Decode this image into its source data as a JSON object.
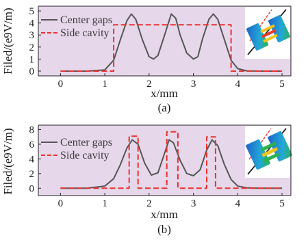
{
  "chart_data": [
    {
      "type": "line",
      "panel_label": "(a)",
      "xlabel": "x/mm",
      "ylabel": "Filed/(e9V/m)",
      "xlim": [
        -0.5,
        5.2
      ],
      "ylim": [
        -0.4,
        5.4
      ],
      "xticks": [
        0,
        1,
        2,
        3,
        4,
        5
      ],
      "yticks": [
        0,
        1,
        2,
        3,
        4,
        5
      ],
      "legend_position": "top-left",
      "background_color": "#e6d7ea",
      "series": [
        {
          "name": "Center gaps",
          "color": "#555555",
          "style": "solid",
          "x": [
            0,
            0.6,
            1.0,
            1.2,
            1.35,
            1.5,
            1.6,
            1.7,
            1.85,
            2.0,
            2.1,
            2.2,
            2.35,
            2.5,
            2.6,
            2.7,
            2.85,
            3.0,
            3.1,
            3.2,
            3.35,
            3.45,
            3.55,
            3.7,
            3.85,
            4.0,
            4.2,
            4.5,
            5.0
          ],
          "y": [
            0,
            0,
            0.1,
            0.9,
            2.6,
            4.2,
            4.75,
            4.3,
            2.6,
            1.2,
            1.0,
            1.3,
            3.0,
            4.75,
            4.4,
            3.0,
            1.5,
            1.0,
            1.2,
            2.6,
            4.3,
            4.75,
            4.3,
            2.6,
            0.9,
            0.2,
            0.02,
            0,
            0
          ]
        },
        {
          "name": "Side cavity",
          "color": "#e8322f",
          "style": "dashed",
          "x": [
            0,
            1.2,
            1.2,
            3.85,
            3.85,
            5.0
          ],
          "y": [
            0,
            0,
            3.85,
            3.85,
            0,
            0
          ]
        }
      ]
    },
    {
      "type": "line",
      "panel_label": "(b)",
      "xlabel": "x/mm",
      "ylabel": "Filed/(e9V/m)",
      "xlim": [
        -0.5,
        5.2
      ],
      "ylim": [
        -1,
        8.6
      ],
      "xticks": [
        0,
        1,
        2,
        3,
        4,
        5
      ],
      "yticks": [
        0,
        2,
        4,
        6,
        8
      ],
      "legend_position": "top-left",
      "background_color": "#e6d7ea",
      "series": [
        {
          "name": "Center gaps",
          "color": "#555555",
          "style": "solid",
          "x": [
            0,
            0.6,
            1.0,
            1.2,
            1.35,
            1.5,
            1.62,
            1.75,
            1.9,
            2.05,
            2.2,
            2.35,
            2.45,
            2.55,
            2.7,
            2.85,
            3.0,
            3.15,
            3.3,
            3.42,
            3.55,
            3.7,
            3.85,
            4.0,
            4.2,
            4.5,
            5.0
          ],
          "y": [
            0,
            0,
            0.3,
            1.3,
            3.2,
            5.5,
            6.6,
            6.0,
            3.4,
            1.8,
            2.1,
            4.8,
            6.6,
            6.2,
            3.8,
            2.0,
            1.7,
            2.5,
            5.2,
            6.6,
            5.8,
            3.2,
            1.2,
            0.3,
            0.05,
            0,
            0
          ]
        },
        {
          "name": "Side cavity",
          "color": "#e8322f",
          "style": "dashed",
          "x": [
            0,
            1.55,
            1.55,
            1.75,
            1.75,
            2.4,
            2.4,
            2.65,
            2.65,
            3.3,
            3.3,
            3.5,
            3.5,
            5.0
          ],
          "y": [
            0,
            0,
            7.1,
            7.1,
            0,
            0,
            7.7,
            7.7,
            0,
            0,
            7.0,
            7.0,
            0,
            0
          ]
        }
      ]
    }
  ]
}
